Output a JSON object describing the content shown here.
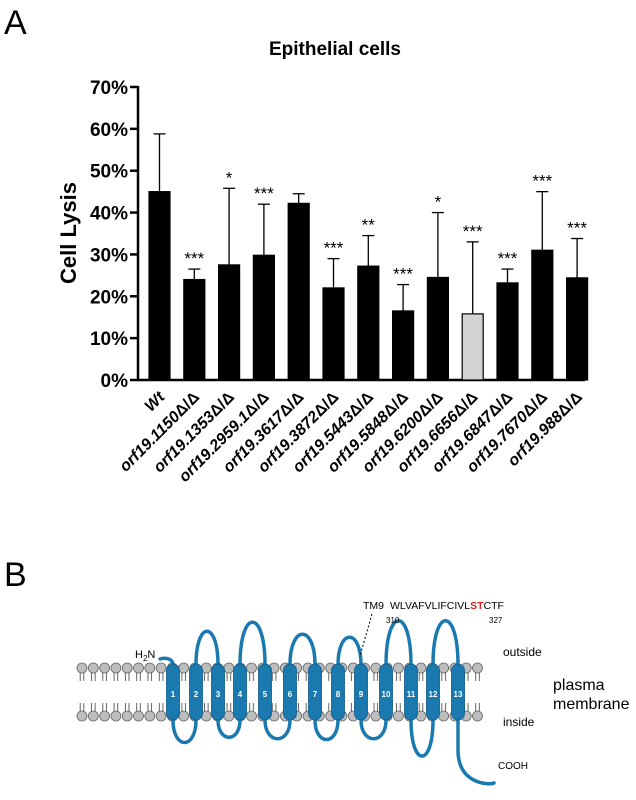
{
  "panel_a_label": "A",
  "panel_b_label": "B",
  "chart_data": {
    "type": "bar",
    "title": "Epithelial cells",
    "xlabel": "",
    "ylabel": "Cell Lysis",
    "ylim": [
      0,
      70
    ],
    "yticks": [
      "0%",
      "10%",
      "20%",
      "30%",
      "40%",
      "50%",
      "60%",
      "70%"
    ],
    "grid": false,
    "categories": [
      {
        "pre": "Wt",
        "suf": ""
      },
      {
        "pre": "orf19.1150",
        "suf": "Δ/Δ"
      },
      {
        "pre": "orf19.1353",
        "suf": "Δ/Δ"
      },
      {
        "pre": "orf19.2959.1",
        "suf": "Δ/Δ"
      },
      {
        "pre": "orf19.3617",
        "suf": "Δ/Δ"
      },
      {
        "pre": "orf19.3872",
        "suf": "Δ/Δ"
      },
      {
        "pre": "orf19.5443",
        "suf": "Δ/Δ"
      },
      {
        "pre": "orf19.5848",
        "suf": "Δ/Δ"
      },
      {
        "pre": "orf19.6200",
        "suf": "Δ/Δ"
      },
      {
        "pre": "orf19.6656",
        "suf": "Δ/Δ"
      },
      {
        "pre": "orf19.6847",
        "suf": "Δ/Δ"
      },
      {
        "pre": "orf19.7670",
        "suf": "Δ/Δ"
      },
      {
        "pre": "orf19.988",
        "suf": "Δ/Δ"
      }
    ],
    "values": [
      45,
      24,
      27.5,
      29.8,
      42.2,
      22,
      27.2,
      16.5,
      24.5,
      15.8,
      23.2,
      31,
      24.4
    ],
    "error_upper": [
      58.8,
      26.5,
      45.8,
      42,
      44.5,
      29,
      34.5,
      22.8,
      40,
      33,
      26.5,
      45,
      33.8
    ],
    "significance": [
      "",
      "***",
      "*",
      "***",
      "",
      "***",
      "**",
      "***",
      "*",
      "***",
      "***",
      "***",
      "***"
    ],
    "bar_colors": [
      "#000000",
      "#000000",
      "#000000",
      "#000000",
      "#000000",
      "#000000",
      "#000000",
      "#000000",
      "#000000",
      "#d3d3d3",
      "#000000",
      "#000000",
      "#000000"
    ]
  },
  "diagram": {
    "n_term": "H",
    "n_term_sub": "2",
    "n_term_suffix": "N",
    "c_term": "COOH",
    "outside_label": "outside",
    "inside_label": "inside",
    "membrane_label_1": "plasma",
    "membrane_label_2": "membrane",
    "tm_label": "TM9",
    "seq_start": "WLVAFVLIFCIVL",
    "seq_highlight": "ST",
    "seq_end": "CTF",
    "pos_start": "310",
    "pos_end": "327",
    "helices": [
      "1",
      "2",
      "3",
      "4",
      "5",
      "6",
      "7",
      "8",
      "9",
      "10",
      "11",
      "12",
      "13"
    ],
    "helix_color": "#1a7ab0",
    "highlight_color": "#e02020",
    "lipid_color": "#bdbdbd"
  }
}
